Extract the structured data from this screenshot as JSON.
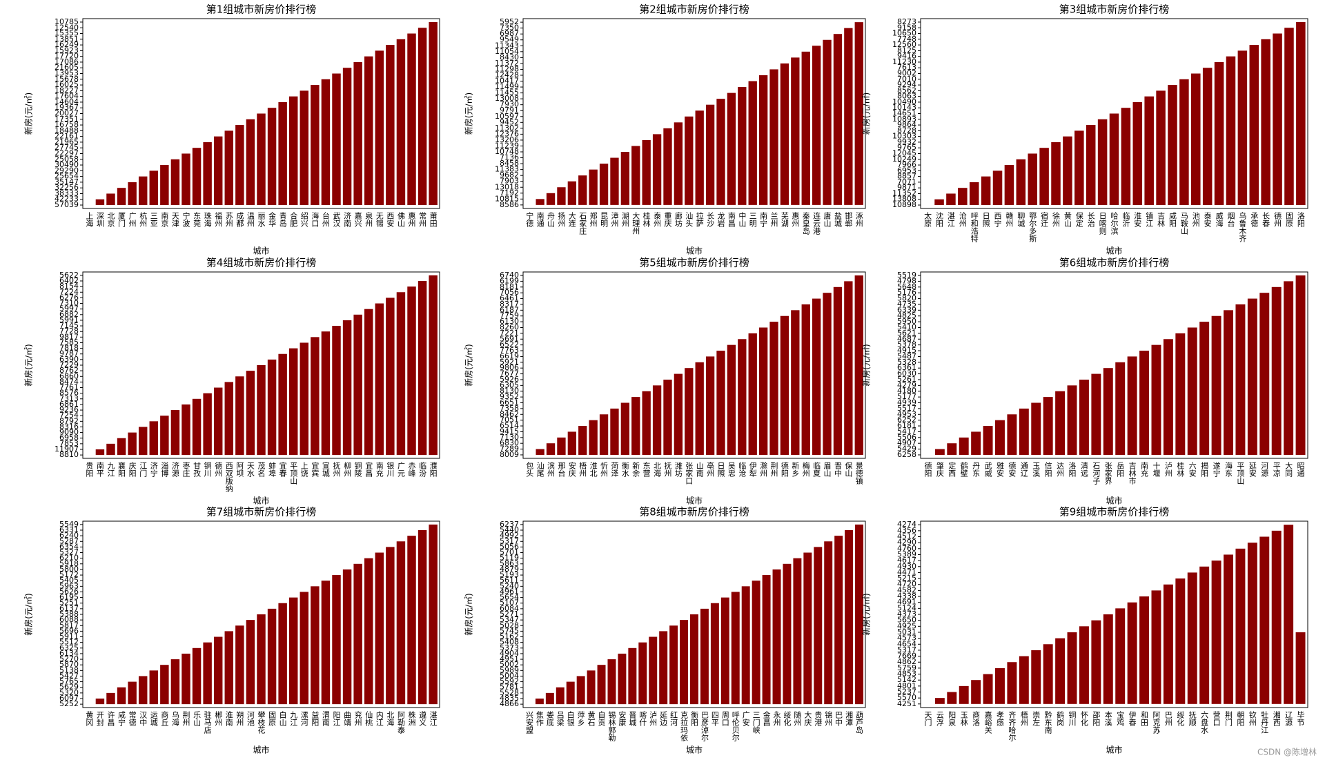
{
  "chart_data": [
    {
      "type": "bar",
      "title": "第1组城市新房价排行榜",
      "x_label": "城市",
      "y_label": "新房(元/㎡)",
      "y_scale": "categorical",
      "color": "#8b0000",
      "categories": [
        "上海",
        "深圳",
        "北京",
        "厦门",
        "广州",
        "杭州",
        "三亚",
        "南京",
        "天津",
        "宁波",
        "东莞",
        "珠海",
        "福州",
        "苏州",
        "成都",
        "温州",
        "丽水",
        "金华",
        "青岛",
        "合肥",
        "绍兴",
        "海口",
        "台州",
        "武汉",
        "济南",
        "嘉兴",
        "泉州",
        "无锡",
        "西安",
        "佛山",
        "惠州",
        "常州",
        "莆田"
      ],
      "values": [
        57039,
        42233,
        38333,
        32256,
        35147,
        25654,
        29290,
        30490,
        25058,
        22297,
        27745,
        21965,
        22161,
        18488,
        16758,
        17351,
        20027,
        19367,
        14604,
        17604,
        18227,
        16025,
        15678,
        13953,
        21605,
        17086,
        17720,
        15923,
        16249,
        13851,
        15355,
        12540,
        10785
      ]
    },
    {
      "type": "bar",
      "title": "第2组城市新房价排行榜",
      "x_label": "城市",
      "y_label": "新房(元/㎡)",
      "y_scale": "categorical",
      "color": "#8b0000",
      "categories": [
        "宁德",
        "南通",
        "舟山",
        "扬州",
        "大连",
        "石家庄",
        "郑州",
        "昆明",
        "漳州",
        "湖州",
        "大理州",
        "桂林",
        "泰州",
        "重庆",
        "廊坊",
        "汕头",
        "拉萨",
        "长沙",
        "龙岩",
        "南昌",
        "中山",
        "三明",
        "南宁",
        "兰州",
        "芜湖",
        "惠州",
        "秦皇岛",
        "连云港",
        "唐山",
        "盐城",
        "邯郸",
        "涿州"
      ],
      "values": [
        8586,
        10815,
        7192,
        13018,
        7903,
        9682,
        11383,
        8458,
        7136,
        10748,
        11239,
        13206,
        12376,
        11302,
        9452,
        10597,
        9791,
        7930,
        13008,
        11455,
        11499,
        10417,
        12428,
        11298,
        11372,
        8430,
        11054,
        11343,
        9549,
        6987,
        7350,
        5952
      ]
    },
    {
      "type": "bar",
      "title": "第3组城市新房价排行榜",
      "x_label": "城市",
      "y_label": "新房(元/㎡)",
      "y_scale": "categorical",
      "color": "#8b0000",
      "categories": [
        "太原",
        "沈阳",
        "湛江",
        "沧州",
        "呼和浩特",
        "日照",
        "西宁",
        "赣州",
        "聊城",
        "鄂尔多斯",
        "宿迁",
        "徐州",
        "黄山",
        "保定",
        "长治",
        "日喀则",
        "哈尔滨",
        "临沂",
        "淮安",
        "镇江",
        "吉林",
        "咸阳",
        "马鞍山",
        "池州",
        "泰安",
        "威海",
        "烟台",
        "乌鲁木齐",
        "承德",
        "长春",
        "德州",
        "固原",
        "洛阳"
      ],
      "values": [
        10898,
        13808,
        11352,
        9871,
        7071,
        8857,
        6953,
        7966,
        10249,
        12045,
        9765,
        9932,
        10303,
        8728,
        9864,
        10893,
        14651,
        10143,
        10490,
        8063,
        8562,
        9294,
        7010,
        9002,
        7613,
        11230,
        9416,
        8125,
        12560,
        7748,
        10650,
        9158,
        8273
      ]
    },
    {
      "type": "bar",
      "title": "第4组城市新房价排行榜",
      "x_label": "城市",
      "y_label": "新房(元/㎡)",
      "y_scale": "categorical",
      "color": "#8b0000",
      "categories": [
        "贵阳",
        "南平",
        "九江",
        "襄阳",
        "庆阳",
        "江门",
        "济宁",
        "淄博",
        "济源",
        "枣庄",
        "甘孜",
        "铜川",
        "德州",
        "西双版纳",
        "阿坝",
        "天水",
        "茂名",
        "蚌埠",
        "宜春",
        "平顶山",
        "上饶",
        "宜宾",
        "宣城",
        "抚州",
        "柳州",
        "铜陵",
        "宜昌",
        "南充",
        "银川",
        "广元",
        "赤峰",
        "临汾",
        "濮阳"
      ],
      "values": [
        8810,
        11907,
        7853,
        6958,
        9090,
        8316,
        8792,
        7254,
        9236,
        6861,
        7313,
        8576,
        7761,
        8474,
        6860,
        8762,
        7229,
        6390,
        9787,
        7818,
        7585,
        9817,
        7728,
        7145,
        5991,
        6882,
        5997,
        7310,
        6276,
        7224,
        8154,
        6402,
        5622
      ]
    },
    {
      "type": "bar",
      "title": "第5组城市新房价排行榜",
      "x_label": "城市",
      "y_label": "新房(元/㎡)",
      "y_scale": "categorical",
      "color": "#8b0000",
      "categories": [
        "包头",
        "汕尾",
        "滨州",
        "邢台",
        "安庆",
        "梧州",
        "淮北",
        "忻州",
        "菏泽",
        "衡水",
        "新余",
        "东营",
        "北海",
        "抚州",
        "潍坊",
        "张家口",
        "山南",
        "亳州",
        "日照",
        "吴忠",
        "临沧",
        "伊犁",
        "滁州",
        "荆州",
        "德阳",
        "新乡",
        "梅州",
        "临夏",
        "眉山",
        "晋中",
        "保山",
        "景德镇"
      ],
      "values": [
        8009,
        7289,
        6830,
        7130,
        9415,
        6514,
        7051,
        8462,
        7358,
        6651,
        9352,
        8130,
        6305,
        5926,
        7677,
        9806,
        5921,
        6619,
        7763,
        6522,
        5691,
        7221,
        8260,
        6130,
        7759,
        6187,
        8317,
        6461,
        7056,
        8181,
        6199,
        6740
      ]
    },
    {
      "type": "bar",
      "title": "第6组城市新房价排行榜",
      "x_label": "城市",
      "y_label": "新房(元/㎡)",
      "y_scale": "categorical",
      "color": "#8b0000",
      "categories": [
        "德阳",
        "肇庆",
        "定西",
        "鹤壁",
        "丹东",
        "武威",
        "雅安",
        "德安",
        "通辽",
        "玉溪",
        "信阳",
        "达州",
        "洛阳",
        "清远",
        "石河子",
        "张家界",
        "岳阳",
        "吉林市",
        "南充",
        "十堰",
        "泸州",
        "桂林",
        "六安",
        "揭阳",
        "遂宁",
        "海东",
        "平顶山",
        "延安",
        "河源",
        "平凉",
        "大同",
        "昭通"
      ],
      "values": [
        6258,
        5429,
        4907,
        5506,
        5417,
        6181,
        6252,
        4953,
        5517,
        4939,
        5177,
        4180,
        4279,
        5261,
        6030,
        6361,
        5328,
        5487,
        4915,
        5378,
        4687,
        5621,
        5410,
        5950,
        4825,
        6339,
        4735,
        5820,
        5176,
        5648,
        4798,
        5519
      ]
    },
    {
      "type": "bar",
      "title": "第7组城市新房价排行榜",
      "x_label": "城市",
      "y_label": "新房(元/㎡)",
      "y_scale": "categorical",
      "color": "#8b0000",
      "categories": [
        "黄冈",
        "开封",
        "许昌",
        "咸宁",
        "常德",
        "汉中",
        "运城",
        "商丘",
        "乌海",
        "荆州",
        "乐山",
        "驻马店",
        "郴州",
        "淮南",
        "朔州",
        "河池",
        "攀枝花",
        "固原",
        "白山",
        "九江",
        "漯河",
        "益阳",
        "渭南",
        "阳江",
        "曲靖",
        "兖州",
        "仙桃",
        "内江",
        "北海",
        "阿勒泰",
        "株洲",
        "遵义",
        "湛江"
      ],
      "values": [
        5252,
        6097,
        5320,
        5629,
        5765,
        5427,
        5138,
        5870,
        5270,
        6134,
        6325,
        5512,
        5911,
        5696,
        5817,
        6088,
        5388,
        6137,
        5251,
        6195,
        5626,
        5963,
        5405,
        5172,
        5800,
        5918,
        6210,
        5327,
        6354,
        5287,
        6240,
        6331,
        5549
      ]
    },
    {
      "type": "bar",
      "title": "第8组城市新房价排行榜",
      "x_label": "城市",
      "y_label": "新房(元/㎡)",
      "y_scale": "categorical",
      "color": "#8b0000",
      "categories": [
        "兴安盟",
        "焦作",
        "娄底",
        "吕梁",
        "白银",
        "萍乡",
        "黄石",
        "自贡",
        "锡林郭勒",
        "安康",
        "晋城",
        "喀什",
        "泸州",
        "延边",
        "红河",
        "克拉玛依",
        "衡阳",
        "巴彦淖尔",
        "四平",
        "周口",
        "呼伦贝尔",
        "广安",
        "三门峡",
        "金昌",
        "永州",
        "绥化",
        "随州",
        "大庆",
        "贵港",
        "锦州",
        "巴中",
        "湘潭",
        "葫芦岛"
      ],
      "values": [
        4866,
        4835,
        5528,
        5781,
        5592,
        5004,
        5989,
        5002,
        4951,
        4904,
        5373,
        5408,
        5162,
        5745,
        5028,
        5347,
        5271,
        6084,
        5107,
        5654,
        4961,
        5240,
        5611,
        5193,
        4879,
        5863,
        5119,
        5701,
        5056,
        5317,
        4992,
        5440,
        6237
      ]
    },
    {
      "type": "bar",
      "title": "第9组城市新房价排行榜",
      "x_label": "城市",
      "y_label": "新房(元/㎡)",
      "y_scale": "categorical",
      "color": "#8b0000",
      "categories": [
        "天门",
        "云浮",
        "阳泉",
        "玉林",
        "商洛",
        "嘉峪关",
        "孝感",
        "齐齐哈尔",
        "梧州",
        "崇左",
        "黔东南",
        "鹤岗",
        "铜川",
        "怀化",
        "邵阳",
        "本溪",
        "宝鸡",
        "伊春",
        "和田",
        "阿克苏",
        "巴州",
        "绥化",
        "抚顺",
        "六盘水",
        "营口",
        "荆门",
        "朝阳",
        "钦州",
        "牡丹江",
        "湘西",
        "辽源",
        "毕节"
      ],
      "values": [
        4251,
        5570,
        5237,
        4801,
        5142,
        4853,
        5759,
        4862,
        7669,
        5317,
        4654,
        4573,
        5031,
        4925,
        5650,
        4373,
        5124,
        4691,
        4338,
        4582,
        4720,
        5215,
        4471,
        4930,
        4617,
        5389,
        4760,
        4290,
        4512,
        4356,
        4274,
        5031
      ]
    }
  ],
  "watermark": "CSDN @陈增林"
}
